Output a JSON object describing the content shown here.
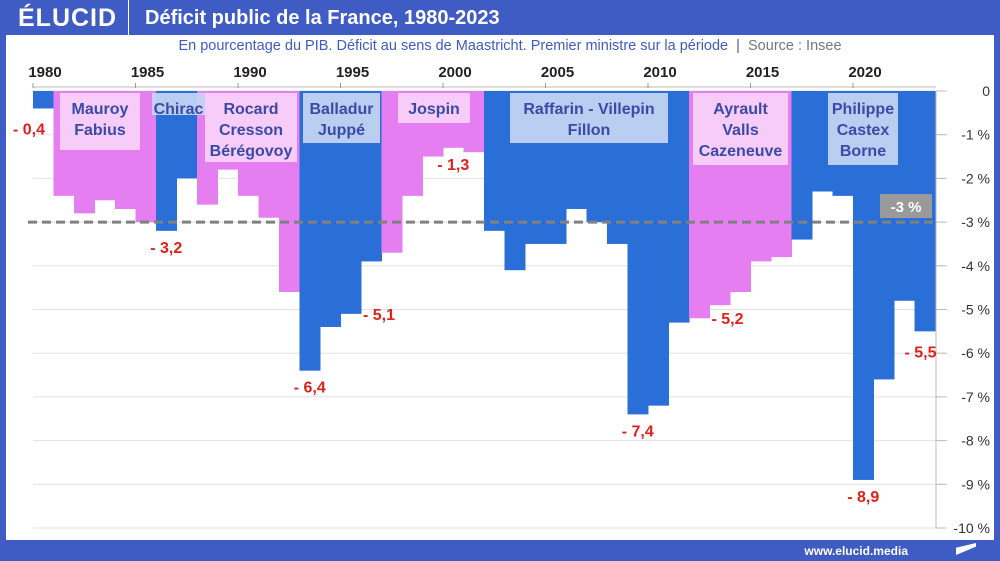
{
  "header": {
    "logo": "ÉLUCID",
    "title": "Déficit public de la France, 1980-2023"
  },
  "subtitle": "En pourcentage du PIB. Déficit au sens de Maastricht. Premier ministre sur la période",
  "source": "Source : Insee",
  "footer": "www.elucid.media",
  "colors": {
    "left_pm": "#e57ef0",
    "right_pm": "#2a6fd8",
    "label": "#e0201a",
    "header": "#3f5bc4",
    "box_pink": "#f8d2f8",
    "box_blue": "#c6d6f3",
    "pm_text": "#3a4aa8"
  },
  "chart_data": {
    "type": "bar",
    "title": "Déficit public de la France, 1980-2023",
    "x": [
      1980,
      1981,
      1982,
      1983,
      1984,
      1985,
      1986,
      1987,
      1988,
      1989,
      1990,
      1991,
      1992,
      1993,
      1994,
      1995,
      1996,
      1997,
      1998,
      1999,
      2000,
      2001,
      2002,
      2003,
      2004,
      2005,
      2006,
      2007,
      2008,
      2009,
      2010,
      2011,
      2012,
      2013,
      2014,
      2015,
      2016,
      2017,
      2018,
      2019,
      2020,
      2021,
      2022,
      2023
    ],
    "values": [
      -0.4,
      -2.4,
      -2.8,
      -2.5,
      -2.7,
      -3.0,
      -3.2,
      -2.0,
      -2.6,
      -1.8,
      -2.4,
      -2.9,
      -4.6,
      -6.4,
      -5.4,
      -5.1,
      -3.9,
      -3.7,
      -2.4,
      -1.5,
      -1.3,
      -1.4,
      -3.2,
      -4.1,
      -3.5,
      -3.5,
      -2.7,
      -3.0,
      -3.5,
      -7.4,
      -7.2,
      -5.3,
      -5.2,
      -4.9,
      -4.6,
      -3.9,
      -3.8,
      -3.4,
      -2.3,
      -2.4,
      -8.9,
      -6.6,
      -4.8,
      -5.5
    ],
    "bar_color": [
      "right",
      "left",
      "left",
      "left",
      "left",
      "left",
      "right",
      "right",
      "left",
      "left",
      "left",
      "left",
      "left",
      "right",
      "right",
      "right",
      "right",
      "left",
      "left",
      "left",
      "left",
      "left",
      "right",
      "right",
      "right",
      "right",
      "right",
      "right",
      "right",
      "right",
      "right",
      "right",
      "left",
      "left",
      "left",
      "left",
      "left",
      "right",
      "right",
      "right",
      "right",
      "right",
      "right",
      "right"
    ],
    "x_ticks": [
      "1980",
      "1985",
      "1990",
      "1995",
      "2000",
      "2005",
      "2010",
      "2015",
      "2020"
    ],
    "y_ticks": [
      "0",
      "-1 %",
      "-2 %",
      "-3 %",
      "-4 %",
      "-5 %",
      "-6 %",
      "-7 %",
      "-8 %",
      "-9 %",
      "-10 %"
    ],
    "ylim": [
      -10,
      0
    ],
    "grid": true,
    "reference_line": {
      "value": -3,
      "label": "-3 %"
    },
    "data_labels": [
      {
        "year": 1980,
        "text": "- 0,4"
      },
      {
        "year": 1986,
        "text": "- 3,2"
      },
      {
        "year": 1993,
        "text": "- 6,4"
      },
      {
        "year": 1995,
        "text": "- 5,1"
      },
      {
        "year": 2000,
        "text": "- 1,3"
      },
      {
        "year": 2009,
        "text": "- 7,4"
      },
      {
        "year": 2012,
        "text": "- 5,2"
      },
      {
        "year": 2020,
        "text": "- 8,9"
      },
      {
        "year": 2023,
        "text": "- 5,5"
      }
    ],
    "annotations": [
      {
        "lines": [
          "Mauroy",
          "Fabius"
        ],
        "side": "left"
      },
      {
        "lines": [
          "Chirac"
        ],
        "side": "right"
      },
      {
        "lines": [
          "Rocard",
          "Cresson",
          "Bérégovoy"
        ],
        "side": "left"
      },
      {
        "lines": [
          "Balladur",
          "Juppé"
        ],
        "side": "right"
      },
      {
        "lines": [
          "Jospin"
        ],
        "side": "left"
      },
      {
        "lines": [
          "Raffarin - Villepin",
          "Fillon"
        ],
        "side": "right"
      },
      {
        "lines": [
          "Ayrault",
          "Valls",
          "Cazeneuve"
        ],
        "side": "left"
      },
      {
        "lines": [
          "Philippe",
          "Castex",
          "Borne"
        ],
        "side": "right"
      }
    ]
  }
}
